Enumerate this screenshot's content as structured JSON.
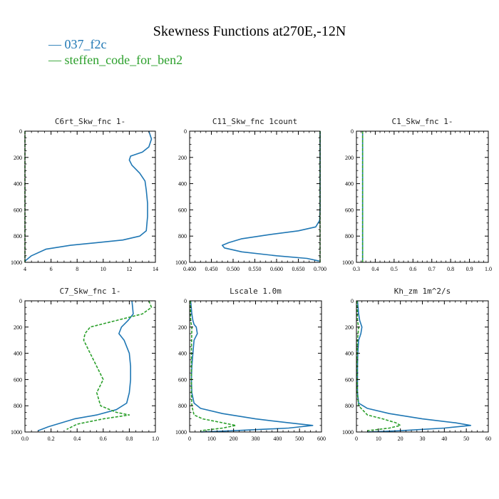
{
  "figure": {
    "title": "Skewness Functions at270E,-12N",
    "legend": [
      {
        "label": "— 037_f2c",
        "color": "#1f77b4"
      },
      {
        "label": "— steffen_code_for_ben2",
        "color": "#2ca02c"
      }
    ]
  },
  "chart_data": [
    {
      "type": "line",
      "title": "C6rt_Skw_fnc   1-",
      "xlim": [
        4,
        14
      ],
      "ylim": [
        0,
        1000
      ],
      "y_inverted": true,
      "xticks": [
        4,
        6,
        8,
        10,
        12,
        14
      ],
      "xticklabels": [
        "4",
        "6",
        "8",
        "10",
        "12",
        "14"
      ],
      "yticks": [
        0,
        200,
        400,
        600,
        800,
        1000
      ],
      "yticklabels": [
        "0",
        "200",
        "400",
        "600",
        "800",
        "1000"
      ],
      "series": [
        {
          "name": "037_f2c",
          "color": "#1f77b4",
          "dash": "",
          "points": [
            [
              13.5,
              0
            ],
            [
              13.7,
              60
            ],
            [
              13.5,
              120
            ],
            [
              13.0,
              160
            ],
            [
              12.1,
              190
            ],
            [
              12.0,
              220
            ],
            [
              12.2,
              260
            ],
            [
              12.8,
              320
            ],
            [
              13.2,
              380
            ],
            [
              13.3,
              450
            ],
            [
              13.4,
              550
            ],
            [
              13.4,
              650
            ],
            [
              13.3,
              760
            ],
            [
              12.8,
              800
            ],
            [
              11.5,
              830
            ],
            [
              9.5,
              850
            ],
            [
              7.5,
              870
            ],
            [
              5.6,
              900
            ],
            [
              4.5,
              950
            ],
            [
              4.0,
              990
            ]
          ]
        },
        {
          "name": "steffen_code_for_ben2",
          "color": "#2ca02c",
          "dash": "4,2",
          "points": [
            [
              4.0,
              0
            ],
            [
              4.0,
              1000
            ]
          ]
        }
      ]
    },
    {
      "type": "line",
      "title": "C11_Skw_fnc   1count",
      "xlim": [
        0.4,
        0.7
      ],
      "ylim": [
        0,
        1000
      ],
      "y_inverted": true,
      "xticks": [
        0.4,
        0.45,
        0.5,
        0.55,
        0.6,
        0.65,
        0.7
      ],
      "xticklabels": [
        "0.400",
        "0.450",
        "0.500",
        "0.550",
        "0.600",
        "0.650",
        "0.700"
      ],
      "yticks": [
        0,
        200,
        400,
        600,
        800,
        1000
      ],
      "yticklabels": [
        "0",
        "200",
        "400",
        "600",
        "800",
        "1000"
      ],
      "series": [
        {
          "name": "037_f2c",
          "color": "#1f77b4",
          "dash": "",
          "points": [
            [
              0.7,
              0
            ],
            [
              0.7,
              600
            ],
            [
              0.699,
              680
            ],
            [
              0.69,
              730
            ],
            [
              0.65,
              760
            ],
            [
              0.58,
              790
            ],
            [
              0.52,
              820
            ],
            [
              0.49,
              850
            ],
            [
              0.475,
              870
            ],
            [
              0.48,
              890
            ],
            [
              0.52,
              920
            ],
            [
              0.6,
              950
            ],
            [
              0.67,
              970
            ],
            [
              0.698,
              990
            ]
          ]
        },
        {
          "name": "steffen_code_for_ben2",
          "color": "#2ca02c",
          "dash": "4,2",
          "points": [
            [
              0.7,
              0
            ],
            [
              0.7,
              1000
            ]
          ]
        }
      ]
    },
    {
      "type": "line",
      "title": "C1_Skw_fnc   1-",
      "xlim": [
        0.3,
        1.0
      ],
      "ylim": [
        0,
        1000
      ],
      "y_inverted": true,
      "xticks": [
        0.3,
        0.4,
        0.5,
        0.6,
        0.7,
        0.8,
        0.9,
        1.0
      ],
      "xticklabels": [
        "0.3",
        "0.4",
        "0.5",
        "0.6",
        "0.7",
        "0.8",
        "0.9",
        "1.0"
      ],
      "yticks": [
        0,
        200,
        400,
        600,
        800,
        1000
      ],
      "yticklabels": [
        "0",
        "200",
        "400",
        "600",
        "800",
        "1000"
      ],
      "series": [
        {
          "name": "037_f2c",
          "color": "#1f77b4",
          "dash": "",
          "points": [
            [
              0.333,
              0
            ],
            [
              0.333,
              1000
            ]
          ]
        },
        {
          "name": "steffen_code_for_ben2",
          "color": "#2ca02c",
          "dash": "4,2",
          "points": [
            [
              0.333,
              0
            ],
            [
              0.333,
              1000
            ]
          ]
        }
      ]
    },
    {
      "type": "line",
      "title": "C7_Skw_fnc   1-",
      "xlim": [
        0.0,
        1.0
      ],
      "ylim": [
        0,
        1000
      ],
      "y_inverted": true,
      "xticks": [
        0.0,
        0.2,
        0.4,
        0.6,
        0.8,
        1.0
      ],
      "xticklabels": [
        "0.0",
        "0.2",
        "0.4",
        "0.6",
        "0.8",
        "1.0"
      ],
      "yticks": [
        0,
        200,
        400,
        600,
        800,
        1000
      ],
      "yticklabels": [
        "0",
        "200",
        "400",
        "600",
        "800",
        "1000"
      ],
      "series": [
        {
          "name": "037_f2c",
          "color": "#1f77b4",
          "dash": "",
          "points": [
            [
              0.82,
              0
            ],
            [
              0.83,
              100
            ],
            [
              0.79,
              150
            ],
            [
              0.74,
              200
            ],
            [
              0.72,
              250
            ],
            [
              0.76,
              300
            ],
            [
              0.8,
              400
            ],
            [
              0.81,
              500
            ],
            [
              0.81,
              600
            ],
            [
              0.8,
              700
            ],
            [
              0.78,
              780
            ],
            [
              0.7,
              830
            ],
            [
              0.55,
              870
            ],
            [
              0.38,
              900
            ],
            [
              0.28,
              930
            ],
            [
              0.18,
              960
            ],
            [
              0.1,
              990
            ]
          ]
        },
        {
          "name": "steffen_code_for_ben2",
          "color": "#2ca02c",
          "dash": "4,2",
          "points": [
            [
              0.95,
              0
            ],
            [
              0.97,
              50
            ],
            [
              0.9,
              100
            ],
            [
              0.7,
              150
            ],
            [
              0.5,
              200
            ],
            [
              0.46,
              250
            ],
            [
              0.45,
              300
            ],
            [
              0.5,
              400
            ],
            [
              0.55,
              500
            ],
            [
              0.6,
              600
            ],
            [
              0.55,
              700
            ],
            [
              0.58,
              800
            ],
            [
              0.7,
              850
            ],
            [
              0.8,
              870
            ],
            [
              0.6,
              900
            ],
            [
              0.4,
              940
            ],
            [
              0.32,
              980
            ]
          ]
        }
      ]
    },
    {
      "type": "line",
      "title": "Lscale   1.0m",
      "xlim": [
        0,
        600
      ],
      "ylim": [
        0,
        1000
      ],
      "y_inverted": true,
      "xticks": [
        0,
        100,
        200,
        300,
        400,
        500,
        600
      ],
      "xticklabels": [
        "0",
        "100",
        "200",
        "300",
        "400",
        "500",
        "600"
      ],
      "yticks": [
        0,
        200,
        400,
        600,
        800,
        1000
      ],
      "yticklabels": [
        "0",
        "200",
        "400",
        "600",
        "800",
        "1000"
      ],
      "series": [
        {
          "name": "037_f2c",
          "color": "#1f77b4",
          "dash": "",
          "points": [
            [
              5,
              0
            ],
            [
              10,
              100
            ],
            [
              15,
              150
            ],
            [
              20,
              180
            ],
            [
              30,
              200
            ],
            [
              35,
              250
            ],
            [
              20,
              300
            ],
            [
              15,
              400
            ],
            [
              10,
              500
            ],
            [
              8,
              600
            ],
            [
              10,
              700
            ],
            [
              20,
              780
            ],
            [
              50,
              820
            ],
            [
              150,
              860
            ],
            [
              300,
              900
            ],
            [
              450,
              930
            ],
            [
              560,
              950
            ],
            [
              450,
              970
            ],
            [
              200,
              990
            ],
            [
              50,
              1000
            ]
          ]
        },
        {
          "name": "steffen_code_for_ben2",
          "color": "#2ca02c",
          "dash": "4,2",
          "points": [
            [
              3,
              0
            ],
            [
              5,
              150
            ],
            [
              10,
              200
            ],
            [
              8,
              400
            ],
            [
              8,
              700
            ],
            [
              10,
              800
            ],
            [
              20,
              870
            ],
            [
              60,
              900
            ],
            [
              150,
              930
            ],
            [
              210,
              950
            ],
            [
              150,
              970
            ],
            [
              50,
              990
            ]
          ]
        }
      ]
    },
    {
      "type": "line",
      "title": "Kh_zm   1m^2/s",
      "xlim": [
        0,
        60
      ],
      "ylim": [
        0,
        1000
      ],
      "y_inverted": true,
      "xticks": [
        0,
        10,
        20,
        30,
        40,
        50,
        60
      ],
      "xticklabels": [
        "0",
        "10",
        "20",
        "30",
        "40",
        "50",
        "60"
      ],
      "yticks": [
        0,
        200,
        400,
        600,
        800,
        1000
      ],
      "yticklabels": [
        "0",
        "200",
        "400",
        "600",
        "800",
        "1000"
      ],
      "series": [
        {
          "name": "037_f2c",
          "color": "#1f77b4",
          "dash": "",
          "points": [
            [
              0.5,
              0
            ],
            [
              1,
              100
            ],
            [
              1.5,
              150
            ],
            [
              2.5,
              200
            ],
            [
              2,
              250
            ],
            [
              1,
              300
            ],
            [
              0.6,
              400
            ],
            [
              0.5,
              500
            ],
            [
              0.5,
              700
            ],
            [
              1,
              780
            ],
            [
              5,
              820
            ],
            [
              15,
              860
            ],
            [
              30,
              900
            ],
            [
              45,
              930
            ],
            [
              52,
              950
            ],
            [
              40,
              970
            ],
            [
              20,
              990
            ],
            [
              5,
              1000
            ]
          ]
        },
        {
          "name": "steffen_code_for_ben2",
          "color": "#2ca02c",
          "dash": "4,2",
          "points": [
            [
              0.3,
              0
            ],
            [
              0.5,
              150
            ],
            [
              1,
              200
            ],
            [
              0.5,
              300
            ],
            [
              0.3,
              500
            ],
            [
              0.4,
              700
            ],
            [
              1,
              800
            ],
            [
              5,
              870
            ],
            [
              12,
              900
            ],
            [
              18,
              930
            ],
            [
              20,
              950
            ],
            [
              15,
              970
            ],
            [
              5,
              990
            ]
          ]
        }
      ]
    }
  ]
}
